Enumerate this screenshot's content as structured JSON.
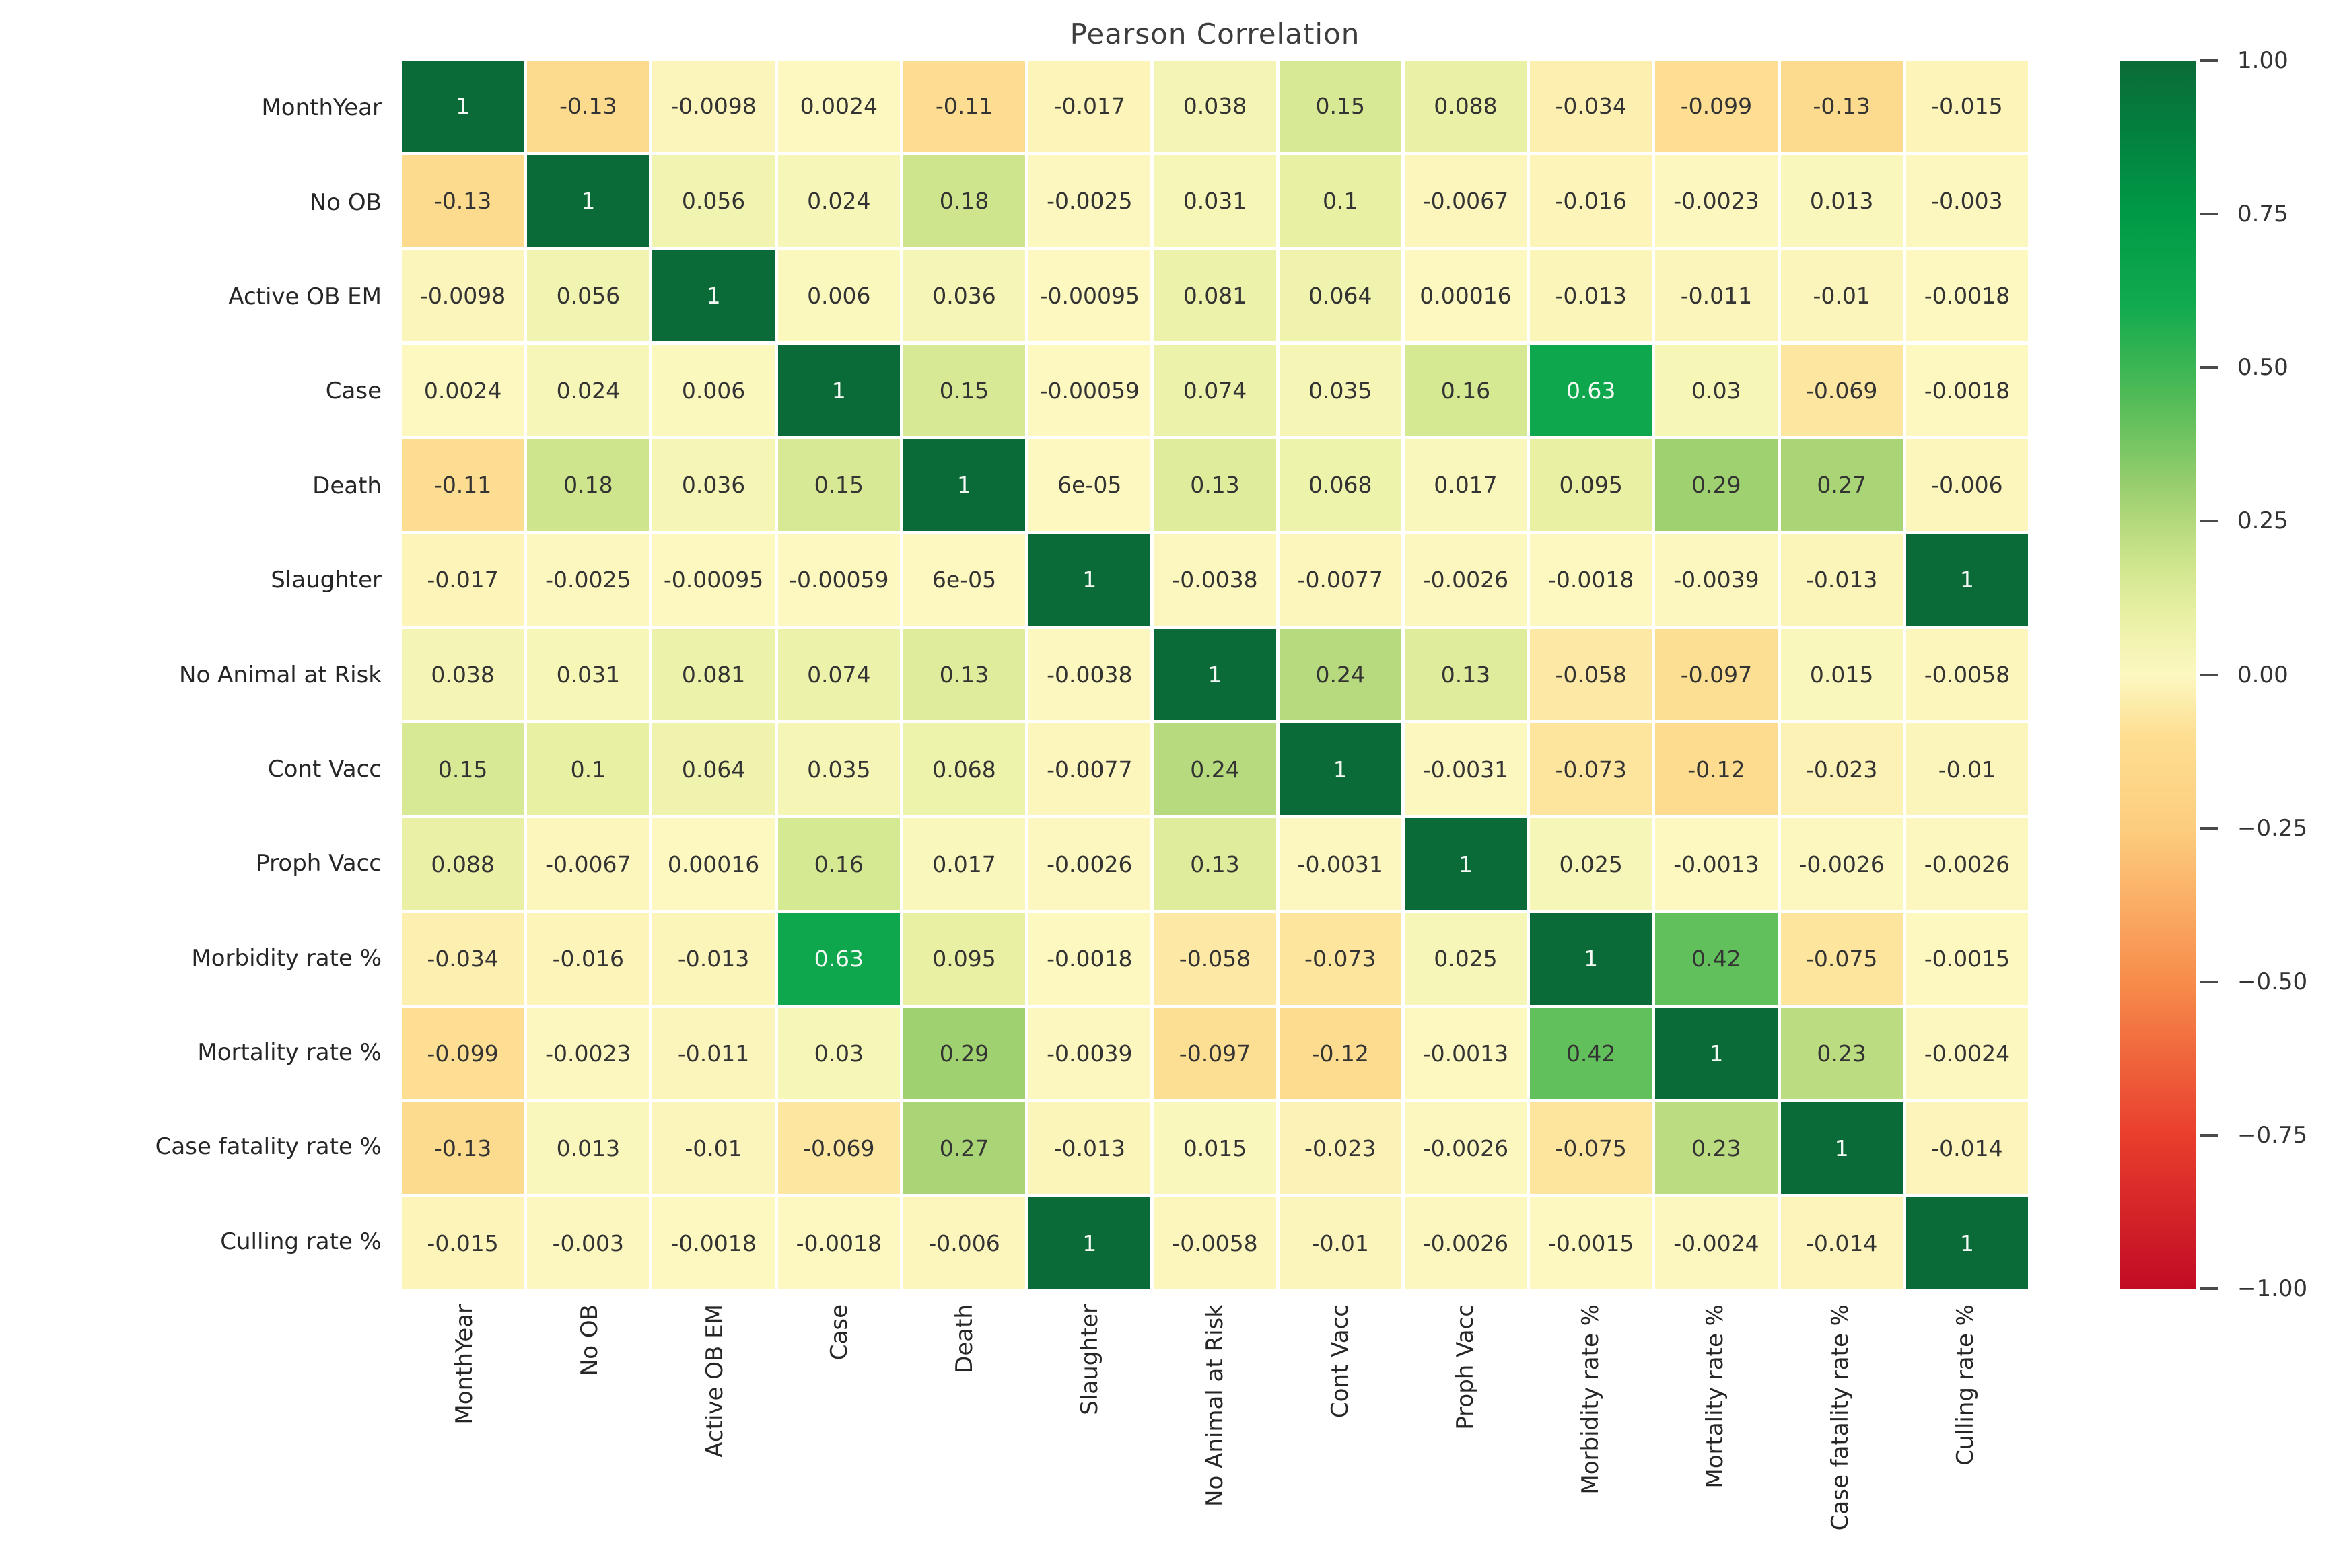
{
  "title": "Pearson Correlation",
  "chart_data": {
    "type": "heatmap",
    "title": "Pearson Correlation",
    "labels": [
      "MonthYear",
      "No OB",
      "Active OB EM",
      "Case",
      "Death",
      "Slaughter",
      "No Animal at Risk",
      "Cont Vacc",
      "Proph Vacc",
      "Morbidity rate %",
      "Mortality rate %",
      "Case fatality rate %",
      "Culling rate %"
    ],
    "matrix": [
      [
        "1",
        "-0.13",
        "-0.0098",
        "0.0024",
        "-0.11",
        "-0.017",
        "0.038",
        "0.15",
        "0.088",
        "-0.034",
        "-0.099",
        "-0.13",
        "-0.015"
      ],
      [
        "-0.13",
        "1",
        "0.056",
        "0.024",
        "0.18",
        "-0.0025",
        "0.031",
        "0.1",
        "-0.0067",
        "-0.016",
        "-0.0023",
        "0.013",
        "-0.003"
      ],
      [
        "-0.0098",
        "0.056",
        "1",
        "0.006",
        "0.036",
        "-0.00095",
        "0.081",
        "0.064",
        "0.00016",
        "-0.013",
        "-0.011",
        "-0.01",
        "-0.0018"
      ],
      [
        "0.0024",
        "0.024",
        "0.006",
        "1",
        "0.15",
        "-0.00059",
        "0.074",
        "0.035",
        "0.16",
        "0.63",
        "0.03",
        "-0.069",
        "-0.0018"
      ],
      [
        "-0.11",
        "0.18",
        "0.036",
        "0.15",
        "1",
        "6e-05",
        "0.13",
        "0.068",
        "0.017",
        "0.095",
        "0.29",
        "0.27",
        "-0.006"
      ],
      [
        "-0.017",
        "-0.0025",
        "-0.00095",
        "-0.00059",
        "6e-05",
        "1",
        "-0.0038",
        "-0.0077",
        "-0.0026",
        "-0.0018",
        "-0.0039",
        "-0.013",
        "1"
      ],
      [
        "0.038",
        "0.031",
        "0.081",
        "0.074",
        "0.13",
        "-0.0038",
        "1",
        "0.24",
        "0.13",
        "-0.058",
        "-0.097",
        "0.015",
        "-0.0058"
      ],
      [
        "0.15",
        "0.1",
        "0.064",
        "0.035",
        "0.068",
        "-0.0077",
        "0.24",
        "1",
        "-0.0031",
        "-0.073",
        "-0.12",
        "-0.023",
        "-0.01"
      ],
      [
        "0.088",
        "-0.0067",
        "0.00016",
        "0.16",
        "0.017",
        "-0.0026",
        "0.13",
        "-0.0031",
        "1",
        "0.025",
        "-0.0013",
        "-0.0026",
        "-0.0026"
      ],
      [
        "-0.034",
        "-0.016",
        "-0.013",
        "0.63",
        "0.095",
        "-0.0018",
        "-0.058",
        "-0.073",
        "0.025",
        "1",
        "0.42",
        "-0.075",
        "-0.0015"
      ],
      [
        "-0.099",
        "-0.0023",
        "-0.011",
        "0.03",
        "0.29",
        "-0.0039",
        "-0.097",
        "-0.12",
        "-0.0013",
        "0.42",
        "1",
        "0.23",
        "-0.0024"
      ],
      [
        "-0.13",
        "0.013",
        "-0.01",
        "-0.069",
        "0.27",
        "-0.013",
        "0.015",
        "-0.023",
        "-0.0026",
        "-0.075",
        "0.23",
        "1",
        "-0.014"
      ],
      [
        "-0.015",
        "-0.003",
        "-0.0018",
        "-0.0018",
        "-0.006",
        "1",
        "-0.0058",
        "-0.01",
        "-0.0026",
        "-0.0015",
        "-0.0024",
        "-0.014",
        "1"
      ]
    ],
    "vmin": -1,
    "vmax": 1,
    "colorbar_ticks": [
      "1.00",
      "0.75",
      "0.50",
      "0.25",
      "0.00",
      "−0.25",
      "−0.50",
      "−0.75",
      "−1.00"
    ],
    "colormap_stops": [
      {
        "v": -1.0,
        "color": "#c10b24"
      },
      {
        "v": -0.75,
        "color": "#e93e2d"
      },
      {
        "v": -0.5,
        "color": "#f78c4b"
      },
      {
        "v": -0.25,
        "color": "#fdcd7e"
      },
      {
        "v": -0.1,
        "color": "#fdde92"
      },
      {
        "v": 0.0,
        "color": "#fcf8c0"
      },
      {
        "v": 0.1,
        "color": "#e8f0a3"
      },
      {
        "v": 0.2,
        "color": "#c8e287"
      },
      {
        "v": 0.3,
        "color": "#9ccf6f"
      },
      {
        "v": 0.45,
        "color": "#52bb57"
      },
      {
        "v": 0.6,
        "color": "#12aa4f"
      },
      {
        "v": 0.75,
        "color": "#009a47"
      },
      {
        "v": 0.88,
        "color": "#03813e"
      },
      {
        "v": 1.0,
        "color": "#0b6b38"
      }
    ],
    "white_text_threshold": 0.6,
    "annot_color": "#333333",
    "annot_color_light": "#f4f9f4",
    "grid_line_color": "#ffffff",
    "legend_position": "right",
    "xlabel": "",
    "ylabel": ""
  }
}
